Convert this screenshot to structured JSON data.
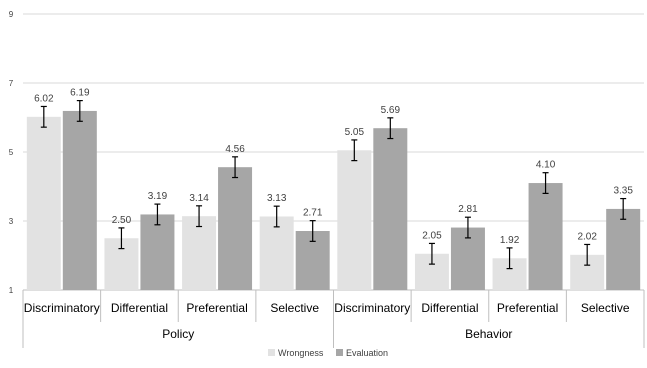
{
  "chart_data": {
    "type": "bar",
    "title": "",
    "xlabel": "",
    "ylabel": "",
    "ylim": [
      1,
      9
    ],
    "yticks": [
      "1",
      "3",
      "5",
      "7",
      "9"
    ],
    "grid": true,
    "legend_position": "bottom-center",
    "groups": [
      {
        "name": "Policy",
        "categories": [
          "Discriminatory",
          "Differential",
          "Preferential",
          "Selective"
        ],
        "series": [
          {
            "name": "Wrongness",
            "values": [
              6.02,
              2.5,
              3.14,
              3.13
            ],
            "labels": [
              "6.02",
              "2.50",
              "3.14",
              "3.13"
            ],
            "error": [
              0.3,
              0.3,
              0.3,
              0.3
            ]
          },
          {
            "name": "Evaluation",
            "values": [
              6.19,
              3.19,
              4.56,
              2.71
            ],
            "labels": [
              "6.19",
              "3.19",
              "4.56",
              "2.71"
            ],
            "error": [
              0.3,
              0.3,
              0.3,
              0.3
            ]
          }
        ]
      },
      {
        "name": "Behavior",
        "categories": [
          "Discriminatory",
          "Differential",
          "Preferential",
          "Selective"
        ],
        "series": [
          {
            "name": "Wrongness",
            "values": [
              5.05,
              2.05,
              1.92,
              2.02
            ],
            "labels": [
              "5.05",
              "2.05",
              "1.92",
              "2.02"
            ],
            "error": [
              0.3,
              0.3,
              0.3,
              0.3
            ]
          },
          {
            "name": "Evaluation",
            "values": [
              5.69,
              2.81,
              4.1,
              3.35
            ],
            "labels": [
              "5.69",
              "2.81",
              "4.10",
              "3.35"
            ],
            "error": [
              0.3,
              0.3,
              0.3,
              0.3
            ]
          }
        ]
      }
    ],
    "legend": [
      {
        "name": "Wrongness",
        "color": "#e2e2e2"
      },
      {
        "name": "Evaluation",
        "color": "#a6a6a6"
      }
    ],
    "colors": {
      "gridline": "#d9d9d9",
      "axis": "#bfbfbf",
      "text": "#404040",
      "errorbar": "#000000"
    }
  }
}
